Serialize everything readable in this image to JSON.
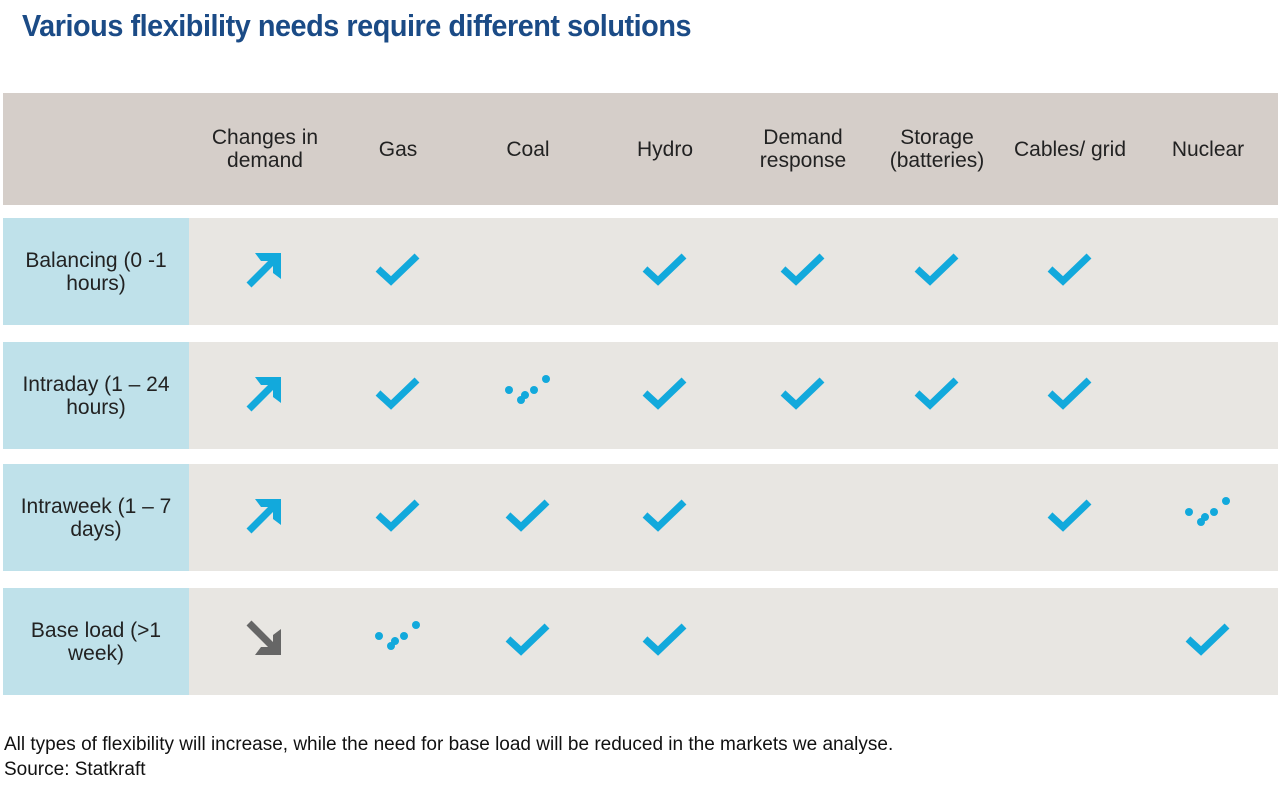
{
  "title": "Various flexibility needs require different solutions",
  "columns": [
    "Changes in demand",
    "Gas",
    "Coal",
    "Hydro",
    "Demand response",
    "Storage (batteries)",
    "Cables/ grid",
    "Nuclear"
  ],
  "rows": [
    {
      "label": "Balancing (0 -1 hours)",
      "cells": [
        "arrow-up",
        "check",
        "",
        "check",
        "check",
        "check",
        "check",
        ""
      ]
    },
    {
      "label": "Intraday (1 – 24 hours)",
      "cells": [
        "arrow-up",
        "check",
        "dotted-check",
        "check",
        "check",
        "check",
        "check",
        ""
      ]
    },
    {
      "label": "Intraweek (1 – 7 days)",
      "cells": [
        "arrow-up",
        "check",
        "check",
        "check",
        "",
        "",
        "check",
        "dotted-check"
      ]
    },
    {
      "label": "Base load (>1 week)",
      "cells": [
        "arrow-down",
        "dotted-check",
        "check",
        "check",
        "",
        "",
        "",
        "check"
      ]
    }
  ],
  "colors": {
    "accent": "#12a9dc",
    "down": "#666666",
    "title": "#1b4b86",
    "header_bg": "#d5cec9",
    "row_bg": "#e8e6e2",
    "label_bg": "#bfe1ea"
  },
  "footer": {
    "note": "All types of flexibility will increase, while the need for base load will be reduced in the markets we analyse.",
    "source": "Source: Statkraft"
  }
}
